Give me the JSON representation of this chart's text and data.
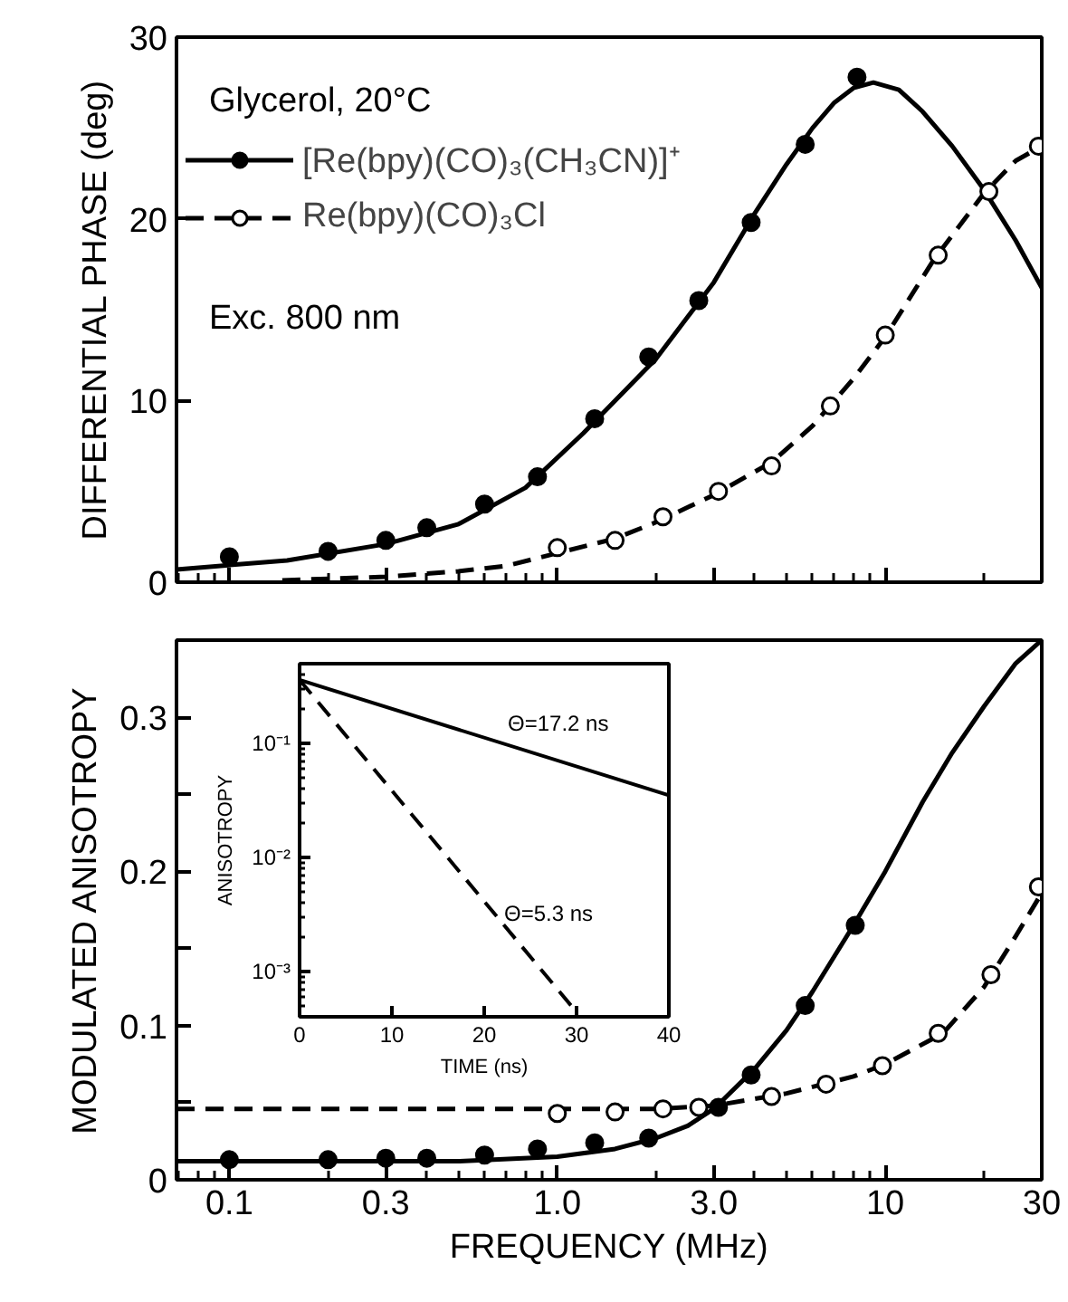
{
  "chart_data": [
    {
      "type": "line",
      "ylabel": "DIFFERENTIAL PHASE (deg)",
      "log": "x",
      "xlim": [
        0.069,
        30
      ],
      "ylim": [
        0,
        30
      ],
      "xticks": [
        0.1,
        0.3,
        1,
        3,
        10,
        30
      ],
      "yticks": [
        0,
        10,
        20,
        30
      ],
      "tick_labels": "y",
      "grid": false,
      "legend": "top left",
      "annotations": [
        "Glycerol, 20°C",
        "Exc. 800 nm"
      ],
      "series": [
        {
          "name": "[Re(bpy)(CO)₃(CH₃CN)]⁺",
          "line_style": "solid",
          "color": "#000000",
          "x": [
            0.069,
            0.15,
            0.3,
            0.5,
            0.8,
            1.2,
            2,
            3,
            4,
            5,
            6,
            7,
            8,
            9.2,
            11,
            13,
            16,
            20,
            25,
            30
          ],
          "values": [
            0.7,
            1.2,
            2.1,
            3.2,
            5.2,
            8.2,
            12.3,
            16.5,
            20.3,
            23.0,
            25.0,
            26.4,
            27.2,
            27.5,
            27.1,
            25.9,
            24.0,
            21.6,
            18.8,
            16.2
          ]
        },
        {
          "type": "scatter",
          "marker": "circle",
          "color": "#000000",
          "x": [
            0.1,
            0.2,
            0.3,
            0.4,
            0.6,
            0.87,
            1.3,
            1.9,
            2.7,
            3.9,
            5.7,
            8.2
          ],
          "values": [
            1.4,
            1.7,
            2.3,
            3.0,
            4.3,
            5.8,
            9.0,
            12.4,
            15.5,
            19.8,
            24.1,
            27.8
          ]
        },
        {
          "name": "Re(bpy)(CO)₃Cl",
          "line_style": "dashed",
          "color": "#000000",
          "x": [
            0.145,
            0.3,
            0.5,
            0.7,
            1.0,
            1.5,
            2,
            3,
            4.5,
            6,
            8,
            10,
            14,
            20,
            25,
            30
          ],
          "values": [
            0.1,
            0.3,
            0.6,
            0.9,
            1.6,
            2.4,
            3.3,
            4.8,
            6.6,
            8.6,
            11.2,
            13.5,
            17.7,
            21.4,
            23.2,
            24.0
          ]
        },
        {
          "type": "scatter",
          "marker": "circle",
          "color": "#ffffff",
          "x": [
            1.0,
            1.5,
            2.1,
            3.1,
            4.5,
            6.8,
            10,
            14.5,
            20.7,
            29.3
          ],
          "values": [
            1.9,
            2.3,
            3.6,
            5.0,
            6.4,
            9.7,
            13.6,
            18.0,
            21.5,
            24.0
          ]
        }
      ]
    },
    {
      "type": "line",
      "xlabel": "FREQUENCY (MHz)",
      "ylabel": "MODULATED ANISOTROPY",
      "log": "x",
      "xlim": [
        0.069,
        30
      ],
      "ylim": [
        0,
        0.35
      ],
      "xticks": [
        0.1,
        0.3,
        {
          "value": 1,
          "label": "1.0"
        },
        {
          "value": 3,
          "label": "3.0"
        },
        10,
        30
      ],
      "yticks": [
        0,
        {
          "value": 0.05,
          "label": null
        },
        0.1,
        {
          "value": 0.15,
          "label": null
        },
        0.2,
        {
          "value": 0.25,
          "label": null
        },
        0.3
      ],
      "grid": false,
      "series": [
        {
          "line_style": "solid",
          "color": "#000000",
          "x": [
            0.069,
            0.5,
            1.0,
            1.5,
            2,
            2.5,
            3,
            4,
            5,
            6,
            8,
            10,
            13,
            16,
            20,
            25,
            30
          ],
          "values": [
            0.012,
            0.012,
            0.015,
            0.02,
            0.027,
            0.035,
            0.046,
            0.072,
            0.097,
            0.122,
            0.165,
            0.2,
            0.245,
            0.277,
            0.307,
            0.335,
            0.35
          ]
        },
        {
          "type": "scatter",
          "marker": "circle",
          "color": "#000000",
          "x": [
            0.1,
            0.2,
            0.3,
            0.4,
            0.6,
            0.87,
            1.3,
            1.9,
            3.1,
            3.9,
            5.7,
            8.1
          ],
          "values": [
            0.013,
            0.013,
            0.014,
            0.014,
            0.016,
            0.02,
            0.024,
            0.027,
            0.047,
            0.068,
            0.113,
            0.165
          ]
        },
        {
          "line_style": "dashed",
          "color": "#000000",
          "x": [
            0.069,
            1,
            2,
            3,
            5,
            8,
            10,
            15,
            20,
            25,
            30
          ],
          "values": [
            0.046,
            0.046,
            0.046,
            0.048,
            0.056,
            0.067,
            0.075,
            0.095,
            0.125,
            0.158,
            0.186
          ]
        },
        {
          "type": "scatter",
          "marker": "circle",
          "color": "#ffffff",
          "x": [
            1.0,
            1.5,
            2.1,
            2.7,
            4.5,
            6.6,
            9.8,
            14.5,
            21,
            29.3
          ],
          "values": [
            0.043,
            0.044,
            0.046,
            0.047,
            0.054,
            0.062,
            0.074,
            0.095,
            0.133,
            0.19
          ]
        }
      ]
    },
    {
      "type": "line",
      "xlabel": "TIME (ns)",
      "ylabel": "ANISOTROPY",
      "log": "y",
      "xlim": [
        0,
        40
      ],
      "ylim": [
        0.0004,
        0.5
      ],
      "xticks": [
        0,
        10,
        20,
        30,
        40
      ],
      "yticks": [
        {
          "value": 0.1,
          "label": "10⁻¹"
        },
        {
          "value": 0.01,
          "label": "10⁻²"
        },
        {
          "value": 0.001,
          "label": "10⁻³"
        }
      ],
      "grid": false,
      "annotations": [
        "Θ=17.2 ns",
        "Θ=5.3 ns"
      ],
      "series": [
        {
          "line_style": "solid",
          "color": "#000000",
          "x": [
            0,
            40
          ],
          "values": [
            0.36,
            0.035
          ]
        },
        {
          "line_style": "dashed",
          "color": "#000000",
          "x": [
            0,
            29.7
          ],
          "values": [
            0.36,
            0.00047
          ]
        }
      ]
    }
  ]
}
